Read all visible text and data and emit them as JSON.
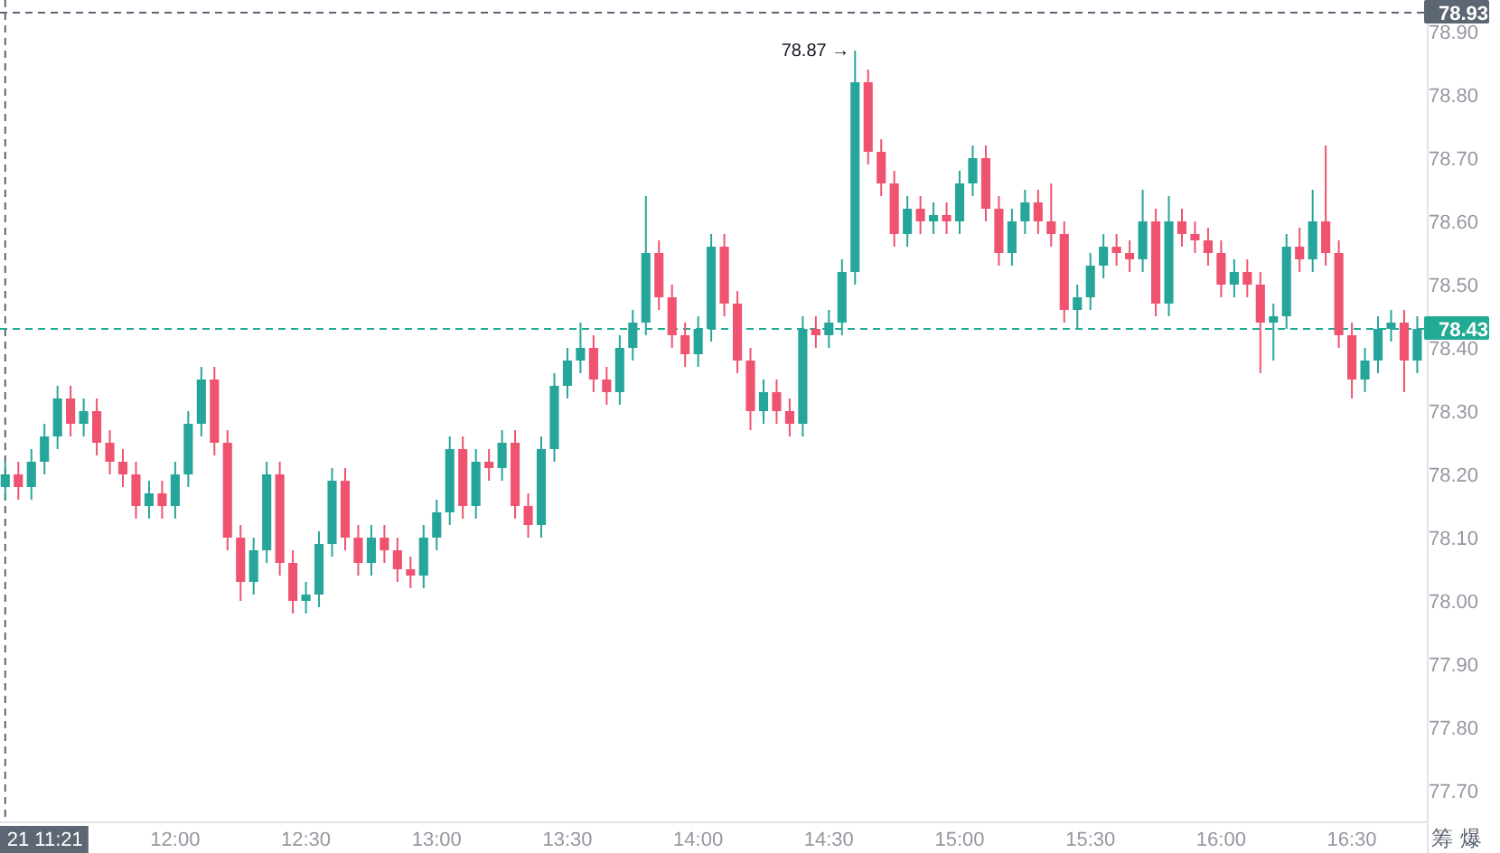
{
  "chart_data": {
    "type": "candlestick",
    "x": [
      11.35,
      11.4,
      11.45,
      11.5,
      11.55,
      11.6,
      11.65,
      11.7,
      11.75,
      11.8,
      11.85,
      11.9,
      11.95,
      12.0,
      12.05,
      12.1,
      12.15,
      12.2,
      12.25,
      12.3,
      12.35,
      12.4,
      12.45,
      12.5,
      12.55,
      12.6,
      12.65,
      12.7,
      12.75,
      12.8,
      12.85,
      12.9,
      12.95,
      13.0,
      13.05,
      13.1,
      13.15,
      13.2,
      13.25,
      13.3,
      13.35,
      13.4,
      13.45,
      13.5,
      13.55,
      13.6,
      13.65,
      13.7,
      13.75,
      13.8,
      13.85,
      13.9,
      13.95,
      14.0,
      14.05,
      14.1,
      14.15,
      14.2,
      14.25,
      14.3,
      14.35,
      14.4,
      14.45,
      14.5,
      14.55,
      14.6,
      14.65,
      14.7,
      14.75,
      14.8,
      14.85,
      14.9,
      14.95,
      15.0,
      15.05,
      15.1,
      15.15,
      15.2,
      15.25,
      15.3,
      15.35,
      15.4,
      15.45,
      15.5,
      15.55,
      15.6,
      15.65,
      15.7,
      15.75,
      15.8,
      15.85,
      15.9,
      15.95,
      16.0,
      16.05,
      16.1,
      16.15,
      16.2,
      16.25,
      16.3,
      16.35,
      16.4,
      16.45,
      16.5,
      16.55,
      16.6,
      16.65,
      16.7,
      16.75
    ],
    "ohlc": [
      [
        78.18,
        78.22,
        78.16,
        78.2
      ],
      [
        78.2,
        78.22,
        78.16,
        78.18
      ],
      [
        78.18,
        78.24,
        78.16,
        78.22
      ],
      [
        78.22,
        78.28,
        78.2,
        78.26
      ],
      [
        78.26,
        78.34,
        78.24,
        78.32
      ],
      [
        78.32,
        78.34,
        78.26,
        78.28
      ],
      [
        78.28,
        78.32,
        78.26,
        78.3
      ],
      [
        78.3,
        78.32,
        78.23,
        78.25
      ],
      [
        78.25,
        78.27,
        78.2,
        78.22
      ],
      [
        78.22,
        78.24,
        78.18,
        78.2
      ],
      [
        78.2,
        78.22,
        78.13,
        78.15
      ],
      [
        78.15,
        78.19,
        78.13,
        78.17
      ],
      [
        78.17,
        78.19,
        78.13,
        78.15
      ],
      [
        78.15,
        78.22,
        78.13,
        78.2
      ],
      [
        78.2,
        78.3,
        78.18,
        78.28
      ],
      [
        78.28,
        78.37,
        78.26,
        78.35
      ],
      [
        78.35,
        78.37,
        78.23,
        78.25
      ],
      [
        78.25,
        78.27,
        78.08,
        78.1
      ],
      [
        78.1,
        78.12,
        78.0,
        78.03
      ],
      [
        78.03,
        78.1,
        78.01,
        78.08
      ],
      [
        78.08,
        78.22,
        78.06,
        78.2
      ],
      [
        78.2,
        78.22,
        78.04,
        78.06
      ],
      [
        78.06,
        78.08,
        77.98,
        78.0
      ],
      [
        78.0,
        78.03,
        77.98,
        78.01
      ],
      [
        78.01,
        78.11,
        77.99,
        78.09
      ],
      [
        78.09,
        78.21,
        78.07,
        78.19
      ],
      [
        78.19,
        78.21,
        78.08,
        78.1
      ],
      [
        78.1,
        78.12,
        78.04,
        78.06
      ],
      [
        78.06,
        78.12,
        78.04,
        78.1
      ],
      [
        78.1,
        78.12,
        78.06,
        78.08
      ],
      [
        78.08,
        78.1,
        78.03,
        78.05
      ],
      [
        78.05,
        78.07,
        78.02,
        78.04
      ],
      [
        78.04,
        78.12,
        78.02,
        78.1
      ],
      [
        78.1,
        78.16,
        78.08,
        78.14
      ],
      [
        78.14,
        78.26,
        78.12,
        78.24
      ],
      [
        78.24,
        78.26,
        78.13,
        78.15
      ],
      [
        78.15,
        78.24,
        78.13,
        78.22
      ],
      [
        78.22,
        78.24,
        78.19,
        78.21
      ],
      [
        78.21,
        78.27,
        78.19,
        78.25
      ],
      [
        78.25,
        78.27,
        78.13,
        78.15
      ],
      [
        78.15,
        78.17,
        78.1,
        78.12
      ],
      [
        78.12,
        78.26,
        78.1,
        78.24
      ],
      [
        78.24,
        78.36,
        78.22,
        78.34
      ],
      [
        78.34,
        78.4,
        78.32,
        78.38
      ],
      [
        78.38,
        78.44,
        78.36,
        78.4
      ],
      [
        78.4,
        78.42,
        78.33,
        78.35
      ],
      [
        78.35,
        78.37,
        78.31,
        78.33
      ],
      [
        78.33,
        78.42,
        78.31,
        78.4
      ],
      [
        78.4,
        78.46,
        78.38,
        78.44
      ],
      [
        78.44,
        78.64,
        78.42,
        78.55
      ],
      [
        78.55,
        78.57,
        78.46,
        78.48
      ],
      [
        78.48,
        78.5,
        78.4,
        78.42
      ],
      [
        78.42,
        78.44,
        78.37,
        78.39
      ],
      [
        78.39,
        78.45,
        78.37,
        78.43
      ],
      [
        78.43,
        78.58,
        78.41,
        78.56
      ],
      [
        78.56,
        78.58,
        78.45,
        78.47
      ],
      [
        78.47,
        78.49,
        78.36,
        78.38
      ],
      [
        78.38,
        78.4,
        78.27,
        78.3
      ],
      [
        78.3,
        78.35,
        78.28,
        78.33
      ],
      [
        78.33,
        78.35,
        78.28,
        78.3
      ],
      [
        78.3,
        78.32,
        78.26,
        78.28
      ],
      [
        78.28,
        78.45,
        78.26,
        78.43
      ],
      [
        78.43,
        78.45,
        78.4,
        78.42
      ],
      [
        78.42,
        78.46,
        78.4,
        78.44
      ],
      [
        78.44,
        78.54,
        78.42,
        78.52
      ],
      [
        78.52,
        78.87,
        78.5,
        78.82
      ],
      [
        78.82,
        78.84,
        78.69,
        78.71
      ],
      [
        78.71,
        78.73,
        78.64,
        78.66
      ],
      [
        78.66,
        78.68,
        78.56,
        78.58
      ],
      [
        78.58,
        78.64,
        78.56,
        78.62
      ],
      [
        78.62,
        78.64,
        78.58,
        78.6
      ],
      [
        78.6,
        78.63,
        78.58,
        78.61
      ],
      [
        78.61,
        78.63,
        78.58,
        78.6
      ],
      [
        78.6,
        78.68,
        78.58,
        78.66
      ],
      [
        78.66,
        78.72,
        78.64,
        78.7
      ],
      [
        78.7,
        78.72,
        78.6,
        78.62
      ],
      [
        78.62,
        78.64,
        78.53,
        78.55
      ],
      [
        78.55,
        78.62,
        78.53,
        78.6
      ],
      [
        78.6,
        78.65,
        78.58,
        78.63
      ],
      [
        78.63,
        78.65,
        78.58,
        78.6
      ],
      [
        78.6,
        78.66,
        78.56,
        78.58
      ],
      [
        78.58,
        78.6,
        78.44,
        78.46
      ],
      [
        78.46,
        78.5,
        78.43,
        78.48
      ],
      [
        78.48,
        78.55,
        78.46,
        78.53
      ],
      [
        78.53,
        78.58,
        78.51,
        78.56
      ],
      [
        78.56,
        78.58,
        78.53,
        78.55
      ],
      [
        78.55,
        78.57,
        78.52,
        78.54
      ],
      [
        78.54,
        78.65,
        78.52,
        78.6
      ],
      [
        78.6,
        78.62,
        78.45,
        78.47
      ],
      [
        78.47,
        78.64,
        78.45,
        78.6
      ],
      [
        78.6,
        78.62,
        78.56,
        78.58
      ],
      [
        78.58,
        78.6,
        78.55,
        78.57
      ],
      [
        78.57,
        78.59,
        78.53,
        78.55
      ],
      [
        78.55,
        78.57,
        78.48,
        78.5
      ],
      [
        78.5,
        78.54,
        78.48,
        78.52
      ],
      [
        78.52,
        78.54,
        78.48,
        78.5
      ],
      [
        78.5,
        78.52,
        78.36,
        78.44
      ],
      [
        78.44,
        78.47,
        78.38,
        78.45
      ],
      [
        78.45,
        78.58,
        78.43,
        78.56
      ],
      [
        78.56,
        78.59,
        78.52,
        78.54
      ],
      [
        78.54,
        78.65,
        78.52,
        78.6
      ],
      [
        78.6,
        78.72,
        78.53,
        78.55
      ],
      [
        78.55,
        78.57,
        78.4,
        78.42
      ],
      [
        78.42,
        78.44,
        78.32,
        78.35
      ],
      [
        78.35,
        78.4,
        78.33,
        78.38
      ],
      [
        78.38,
        78.45,
        78.36,
        78.43
      ],
      [
        78.43,
        78.46,
        78.41,
        78.44
      ],
      [
        78.44,
        78.46,
        78.33,
        78.38
      ],
      [
        78.38,
        78.45,
        78.36,
        78.43
      ]
    ],
    "colors": [
      "#26a69a",
      "#ef5370",
      "#26a69a",
      "#26a69a",
      "#26a69a",
      "#ef5370",
      "#26a69a",
      "#ef5370",
      "#ef5370",
      "#ef5370",
      "#ef5370",
      "#26a69a",
      "#ef5370",
      "#26a69a",
      "#26a69a",
      "#26a69a",
      "#ef5370",
      "#ef5370",
      "#ef5370",
      "#26a69a",
      "#26a69a",
      "#ef5370",
      "#ef5370",
      "#26a69a",
      "#26a69a",
      "#26a69a",
      "#ef5370",
      "#ef5370",
      "#26a69a",
      "#ef5370",
      "#ef5370",
      "#ef5370",
      "#26a69a",
      "#26a69a",
      "#26a69a",
      "#ef5370",
      "#26a69a",
      "#ef5370",
      "#26a69a",
      "#ef5370",
      "#ef5370",
      "#26a69a",
      "#26a69a",
      "#26a69a",
      "#26a69a",
      "#ef5370",
      "#ef5370",
      "#26a69a",
      "#26a69a",
      "#26a69a",
      "#ef5370",
      "#ef5370",
      "#ef5370",
      "#26a69a",
      "#26a69a",
      "#ef5370",
      "#ef5370",
      "#ef5370",
      "#26a69a",
      "#ef5370",
      "#ef5370",
      "#26a69a",
      "#ef5370",
      "#26a69a",
      "#26a69a",
      "#26a69a",
      "#ef5370",
      "#ef5370",
      "#ef5370",
      "#26a69a",
      "#ef5370",
      "#26a69a",
      "#ef5370",
      "#26a69a",
      "#26a69a",
      "#ef5370",
      "#ef5370",
      "#26a69a",
      "#26a69a",
      "#ef5370",
      "#ef5370",
      "#ef5370",
      "#26a69a",
      "#26a69a",
      "#26a69a",
      "#ef5370",
      "#ef5370",
      "#26a69a",
      "#ef5370",
      "#26a69a",
      "#ef5370",
      "#ef5370",
      "#ef5370",
      "#ef5370",
      "#26a69a",
      "#ef5370",
      "#ef5370",
      "#26a69a",
      "#26a69a",
      "#ef5370",
      "#26a69a",
      "#ef5370",
      "#ef5370",
      "#ef5370",
      "#26a69a",
      "#26a69a",
      "#26a69a",
      "#ef5370",
      "#26a69a"
    ],
    "xlim": [
      11.33,
      16.79
    ],
    "ylim": [
      77.65,
      78.95
    ],
    "xticks": [
      {
        "value": 12,
        "label": "12:00"
      },
      {
        "value": 12.5,
        "label": "12:30"
      },
      {
        "value": 13,
        "label": "13:00"
      },
      {
        "value": 13.5,
        "label": "13:30"
      },
      {
        "value": 14,
        "label": "14:00"
      },
      {
        "value": 14.5,
        "label": "14:30"
      },
      {
        "value": 15,
        "label": "15:00"
      },
      {
        "value": 15.5,
        "label": "15:30"
      },
      {
        "value": 16,
        "label": "16:00"
      },
      {
        "value": 16.5,
        "label": "16:30"
      }
    ],
    "yticks": [
      {
        "value": 77.7,
        "label": "77.70"
      },
      {
        "value": 77.8,
        "label": "77.80"
      },
      {
        "value": 77.9,
        "label": "77.90"
      },
      {
        "value": 78.0,
        "label": "78.00"
      },
      {
        "value": 78.1,
        "label": "78.10"
      },
      {
        "value": 78.2,
        "label": "78.20"
      },
      {
        "value": 78.3,
        "label": "78.30"
      },
      {
        "value": 78.4,
        "label": "78.40"
      },
      {
        "value": 78.5,
        "label": "78.50"
      },
      {
        "value": 78.6,
        "label": "78.60"
      },
      {
        "value": 78.7,
        "label": "78.70"
      },
      {
        "value": 78.8,
        "label": "78.80"
      },
      {
        "value": 78.9,
        "label": "78.90"
      }
    ],
    "ref_lines": [
      {
        "axis": "y",
        "value": 78.43,
        "label": "78.43",
        "color": "#22ab94",
        "line_style": "dashed"
      },
      {
        "axis": "y",
        "value": 78.93,
        "label": "78.93",
        "color": "#5d6673",
        "line_style": "dashed"
      },
      {
        "axis": "x",
        "value": 11.35,
        "label": "21 11:21",
        "color": "#5d6673",
        "line_style": "dashed"
      }
    ],
    "annotations": [
      {
        "text": "78.87 →",
        "x": 14.6,
        "y": 78.87
      },
      "筹",
      "爆"
    ]
  }
}
